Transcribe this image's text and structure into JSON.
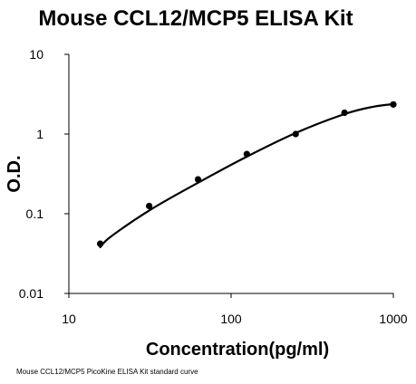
{
  "chart_data": {
    "type": "scatter",
    "title": "Mouse CCL12/MCP5 ELISA Kit",
    "xlabel": "Concentration(pg/ml)",
    "ylabel": "O.D.",
    "x_scale": "log",
    "y_scale": "log",
    "xlim": [
      10,
      1000
    ],
    "ylim": [
      0.01,
      10
    ],
    "x_ticks": [
      "10",
      "100",
      "1000"
    ],
    "y_ticks": [
      "10",
      "1",
      "0.1",
      "0.01"
    ],
    "grid": false,
    "series": [
      {
        "x": [
          15.6,
          31.25,
          62.5,
          125,
          250,
          500,
          1000
        ],
        "y": [
          0.042,
          0.125,
          0.27,
          0.56,
          1.0,
          1.85,
          2.35
        ]
      }
    ],
    "fit_curve": {
      "x": [
        15.6,
        18,
        31.25,
        62.5,
        125,
        250,
        500,
        750,
        1000
      ],
      "y": [
        0.038,
        0.051,
        0.11,
        0.245,
        0.52,
        1.03,
        1.78,
        2.2,
        2.38
      ]
    },
    "caption": "Mouse CCL12/MCP5 PicoKine ELISA Kit standard curve",
    "colors": {
      "marker": "#000000",
      "line": "#000000",
      "axis": "#000000"
    }
  }
}
